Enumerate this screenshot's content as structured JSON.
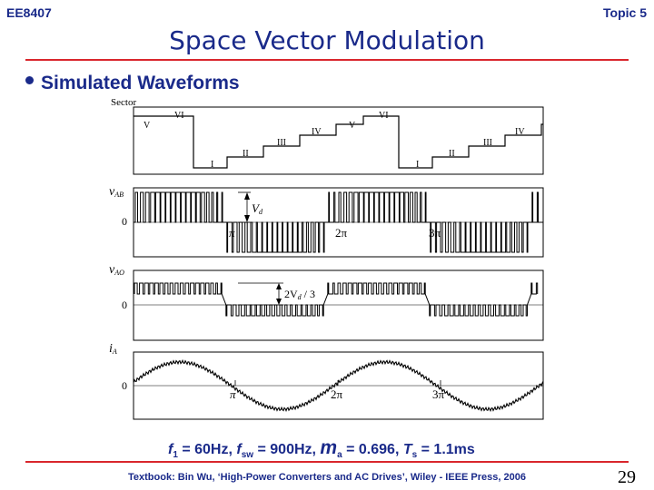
{
  "header": {
    "course": "EE8407",
    "topic": "Topic 5",
    "title": "Space Vector Modulation"
  },
  "bullet": "Simulated Waveforms",
  "figure": {
    "sector_label": "Sector",
    "sector_labels": [
      "V",
      "VI",
      "I",
      "II",
      "III",
      "IV",
      "V",
      "VI",
      "I",
      "II",
      "III",
      "IV"
    ],
    "vab_label": "v",
    "vab_sub": "AB",
    "vao_label": "v",
    "vao_sub": "AO",
    "ia_label": "i",
    "ia_sub": "A",
    "zero": "0",
    "vd_label": "V",
    "vd_sub": "d",
    "two_vd_label": "2V",
    "two_vd_sub": "d",
    "two_vd_tail": " / 3",
    "pi_labels": [
      "π",
      "2π",
      "3π"
    ]
  },
  "params": {
    "f1_sym": "f",
    "f1_sub": "1",
    "f1_val": " = 60Hz, ",
    "fsw_sym": "f",
    "fsw_sub": "sw",
    "fsw_val": " = 900Hz, ",
    "ma_sym": "m",
    "ma_sub": "a",
    "ma_val": " = 0.696, ",
    "ts_sym": "T",
    "ts_sub": "s",
    "ts_val": " = 1.1ms"
  },
  "footer": "Textbook: Bin Wu, ‘High-Power Converters and AC Drives’, Wiley - IEEE Press, 2006",
  "page_number": "29"
}
